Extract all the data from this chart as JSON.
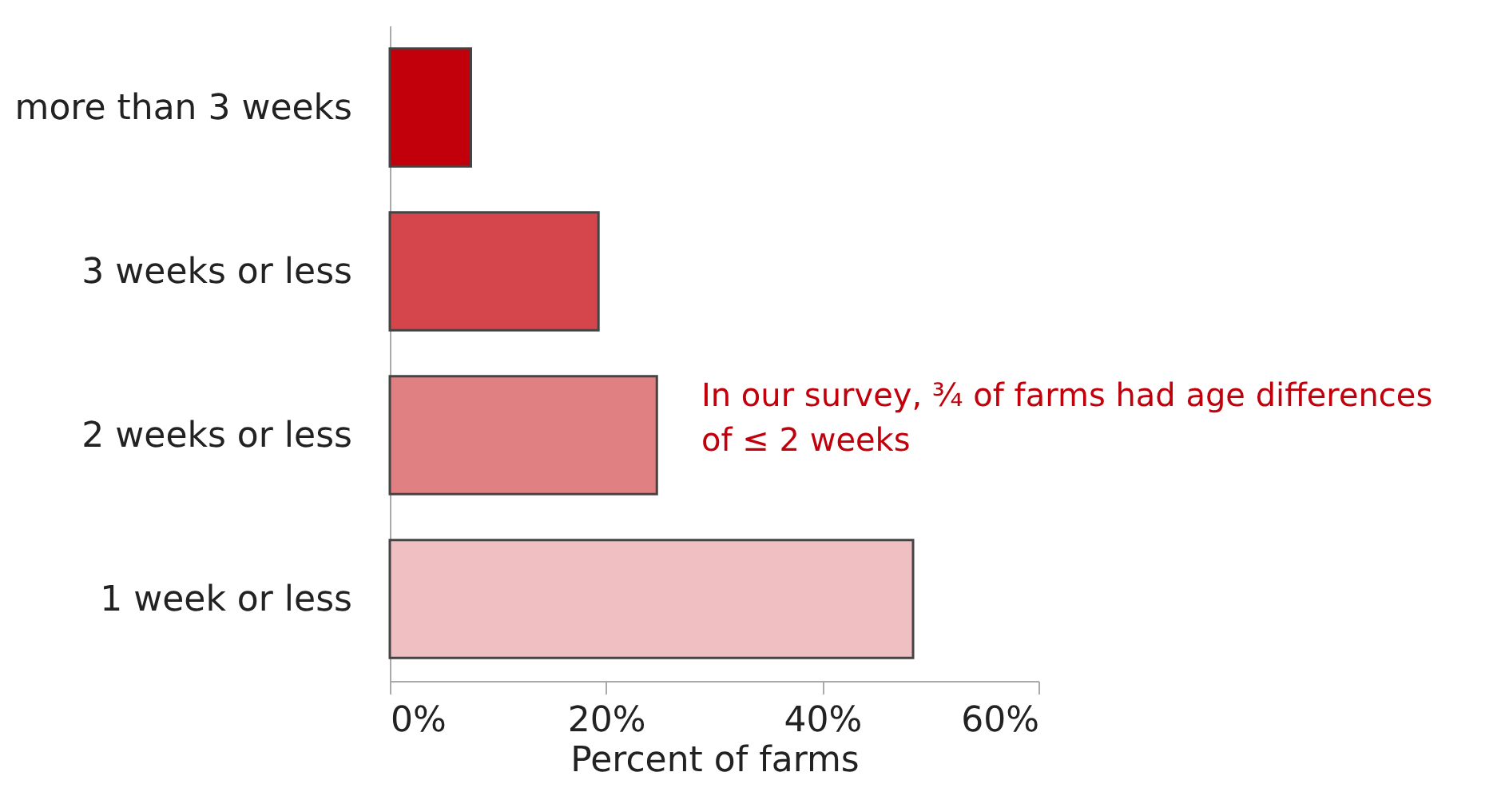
{
  "chart_data": {
    "type": "bar",
    "orientation": "horizontal",
    "xlabel": "Percent of farms",
    "categories": [
      "more than 3 weeks",
      "3 weeks or less",
      "2 weeks or less",
      "1 week or less"
    ],
    "values": [
      7.5,
      19.3,
      24.7,
      48.4
    ],
    "colors": [
      "#c1000b",
      "#d5464c",
      "#e08083",
      "#f0bfc2"
    ],
    "xlim": [
      0,
      60
    ],
    "xticks": [
      {
        "value": 0,
        "label": "0%"
      },
      {
        "value": 20,
        "label": "20%"
      },
      {
        "value": 40,
        "label": "40%"
      },
      {
        "value": 60,
        "label": "60%"
      }
    ],
    "grid": false,
    "annotations": [
      "In our survey, ¾ of farms had age differences of ≤ 2 weeks"
    ]
  }
}
